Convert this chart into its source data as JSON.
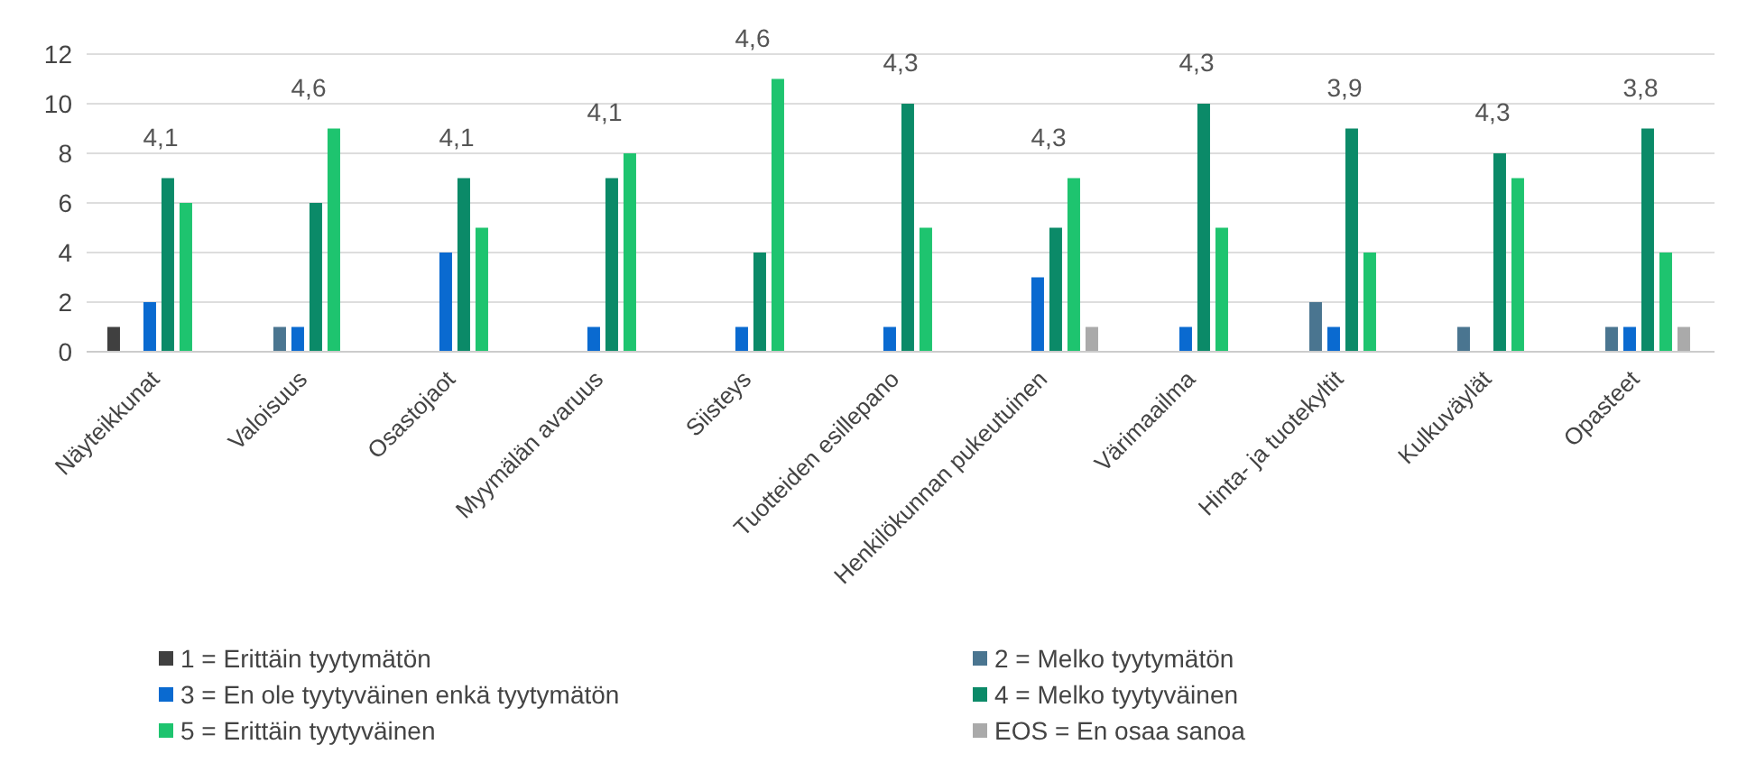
{
  "chart_data": {
    "type": "bar",
    "categories": [
      "Näyteikkunat",
      "Valoisuus",
      "Osastojaot",
      "Myymälän avaruus",
      "Siisteys",
      "Tuotteiden esillepano",
      "Henkilökunnan pukeutuinen",
      "Värimaailma",
      "Hinta- ja tuotekyltit",
      "Kulkuväylät",
      "Opasteet"
    ],
    "series": [
      {
        "name": "1 = Erittäin tyytymätön",
        "color": "#404040",
        "values": [
          1,
          null,
          null,
          null,
          null,
          null,
          null,
          null,
          null,
          null,
          null
        ]
      },
      {
        "name": "2 = Melko tyytymätön",
        "color": "#4a7590",
        "values": [
          null,
          1,
          null,
          null,
          null,
          null,
          null,
          null,
          2,
          1,
          1
        ]
      },
      {
        "name": "3 = En ole tyytyväinen enkä tyytymätön",
        "color": "#0a6ad0",
        "values": [
          2,
          1,
          4,
          1,
          1,
          1,
          3,
          1,
          1,
          null,
          1
        ]
      },
      {
        "name": "4 = Melko tyytyväinen",
        "color": "#0b8a68",
        "values": [
          7,
          6,
          7,
          7,
          4,
          10,
          5,
          10,
          9,
          8,
          9
        ]
      },
      {
        "name": "5 = Erittäin tyytyväinen",
        "color": "#1ec46f",
        "values": [
          6,
          9,
          5,
          8,
          11,
          5,
          7,
          5,
          4,
          7,
          4
        ]
      },
      {
        "name": "EOS = En osaa sanoa",
        "color": "#aaaaaa",
        "values": [
          null,
          null,
          null,
          null,
          null,
          null,
          1,
          null,
          null,
          null,
          1
        ]
      }
    ],
    "ylim": [
      0,
      12
    ],
    "yticks": [
      0,
      2,
      4,
      6,
      8,
      10,
      12
    ],
    "grid": "y",
    "legend": "bottom",
    "annotations": [
      "4,1",
      "4,6",
      "4,1",
      "4,1",
      "4,6",
      "4,3",
      "4,3",
      "4,3",
      "3,9",
      "4,3",
      "3,8"
    ]
  }
}
